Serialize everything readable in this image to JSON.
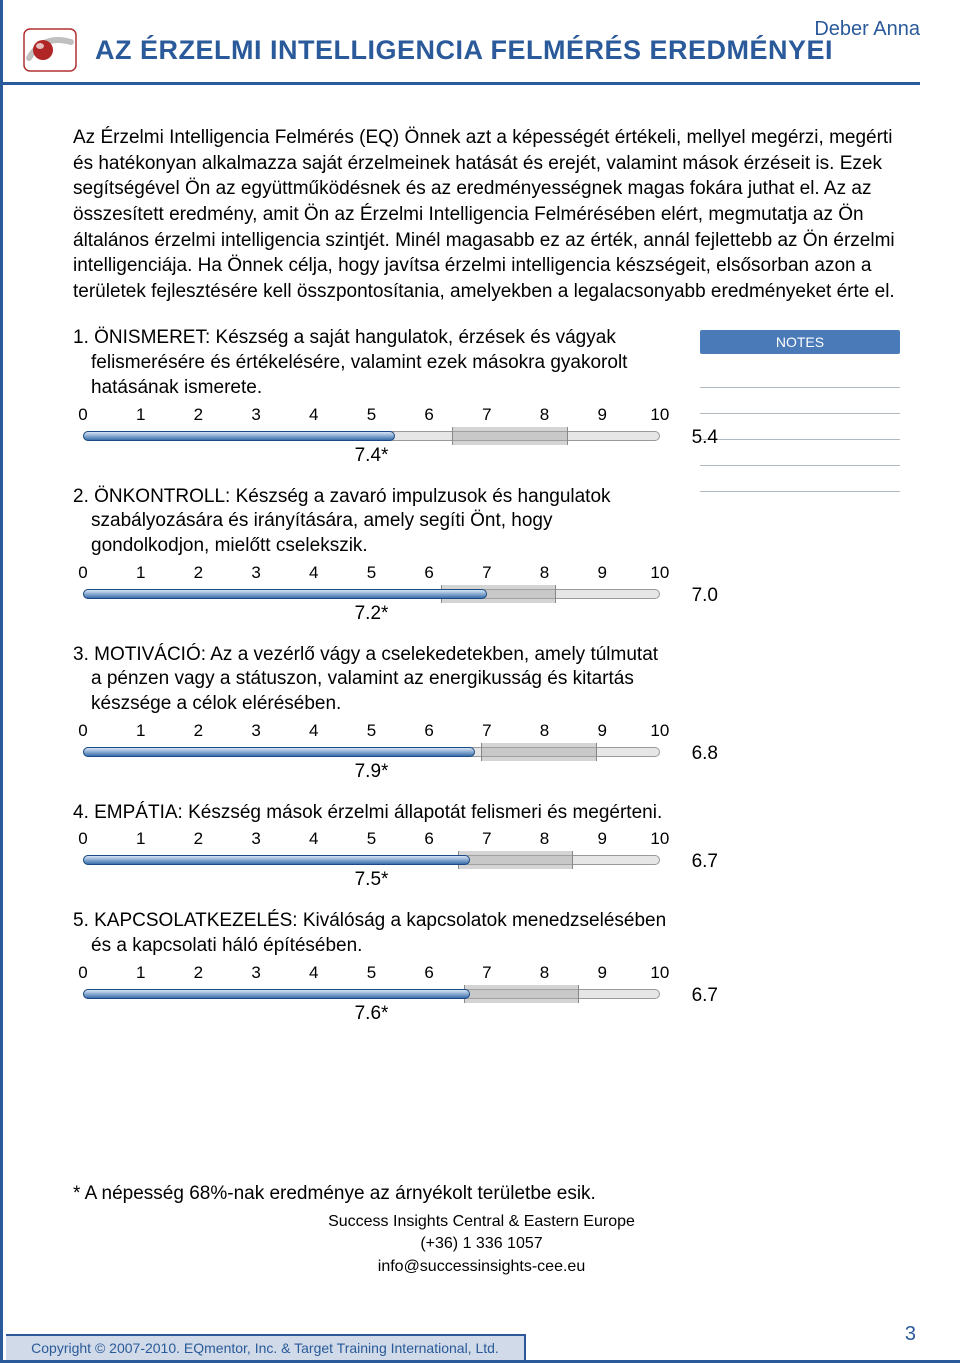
{
  "meta": {
    "person": "Deber Anna",
    "title": "AZ ÉRZELMI INTELLIGENCIA FELMÉRÉS EREDMÉNYEI",
    "page_number": "3"
  },
  "intro": "Az Érzelmi Intelligencia Felmérés (EQ) Önnek azt a képességét értékeli, mellyel megérzi, megérti és hatékonyan alkalmazza saját érzelmeinek hatását és erejét, valamint mások érzéseit is. Ezek segítségével Ön az együttműködésnek és az eredményességnek magas fokára juthat el. Az az összesített eredmény, amit Ön az Érzelmi Intelligencia Felmérésében elért, megmutatja az Ön általános érzelmi intelligencia szintjét. Minél magasabb ez az érték, annál fejlettebb az Ön érzelmi intelligenciája. Ha Önnek célja, hogy javítsa érzelmi intelligencia készségeit, elsősorban azon a területek fejlesztésére kell összpontosítania, amelyekben a legalacsonyabb eredményeket érte el.",
  "notes_label": "NOTES",
  "scale": {
    "ticks": [
      0,
      1,
      2,
      3,
      4,
      5,
      6,
      7,
      8,
      9,
      10
    ],
    "min": 0,
    "max": 10
  },
  "bar_style": {
    "fill_gradient_top": "#d6e4f5",
    "fill_gradient_bottom": "#3b6fab",
    "track_bg": "#e6e6e6",
    "border": "#1a4a85"
  },
  "competencies": [
    {
      "num": "1.",
      "name": "ÖNISMERET",
      "desc": "Készség a saját hangulatok, érzések és vágyak felismerésére és értékelésére, valamint ezek másokra gyakorolt hatásának ismerete.",
      "score": 5.4,
      "asterisk": 7.4
    },
    {
      "num": "2.",
      "name": "ÖNKONTROLL",
      "desc": "Készség a zavaró impulzusok és hangulatok szabályozására és irányítására, amely segíti Önt, hogy gondolkodjon, mielőtt cselekszik.",
      "score": 7.0,
      "asterisk": 7.2
    },
    {
      "num": "3.",
      "name": "MOTIVÁCIÓ",
      "desc": "Az a vezérlő vágy a cselekedetekben, amely túlmutat a pénzen vagy a státuszon, valamint az energikusság és kitartás készsége a célok elérésében.",
      "score": 6.8,
      "asterisk": 7.9
    },
    {
      "num": "4.",
      "name": "EMPÁTIA",
      "desc": "Készség mások érzelmi állapotát felismeri és megérteni.",
      "score": 6.7,
      "asterisk": 7.5
    },
    {
      "num": "5.",
      "name": "KAPCSOLATKEZELÉS",
      "desc": "Kiválóság a kapcsolatok menedzselésében és a kapcsolati háló építésében.",
      "score": 6.7,
      "asterisk": 7.6
    }
  ],
  "footnote": "* A népesség 68%-nak eredménye az árnyékolt területbe esik.",
  "footer": {
    "line1": "Success Insights Central & Eastern Europe",
    "line2": "(+36) 1 336 1057",
    "line3": "info@successinsights-cee.eu"
  },
  "copyright": "Copyright © 2007-2010. EQmentor, Inc. & Target Training International, Ltd."
}
